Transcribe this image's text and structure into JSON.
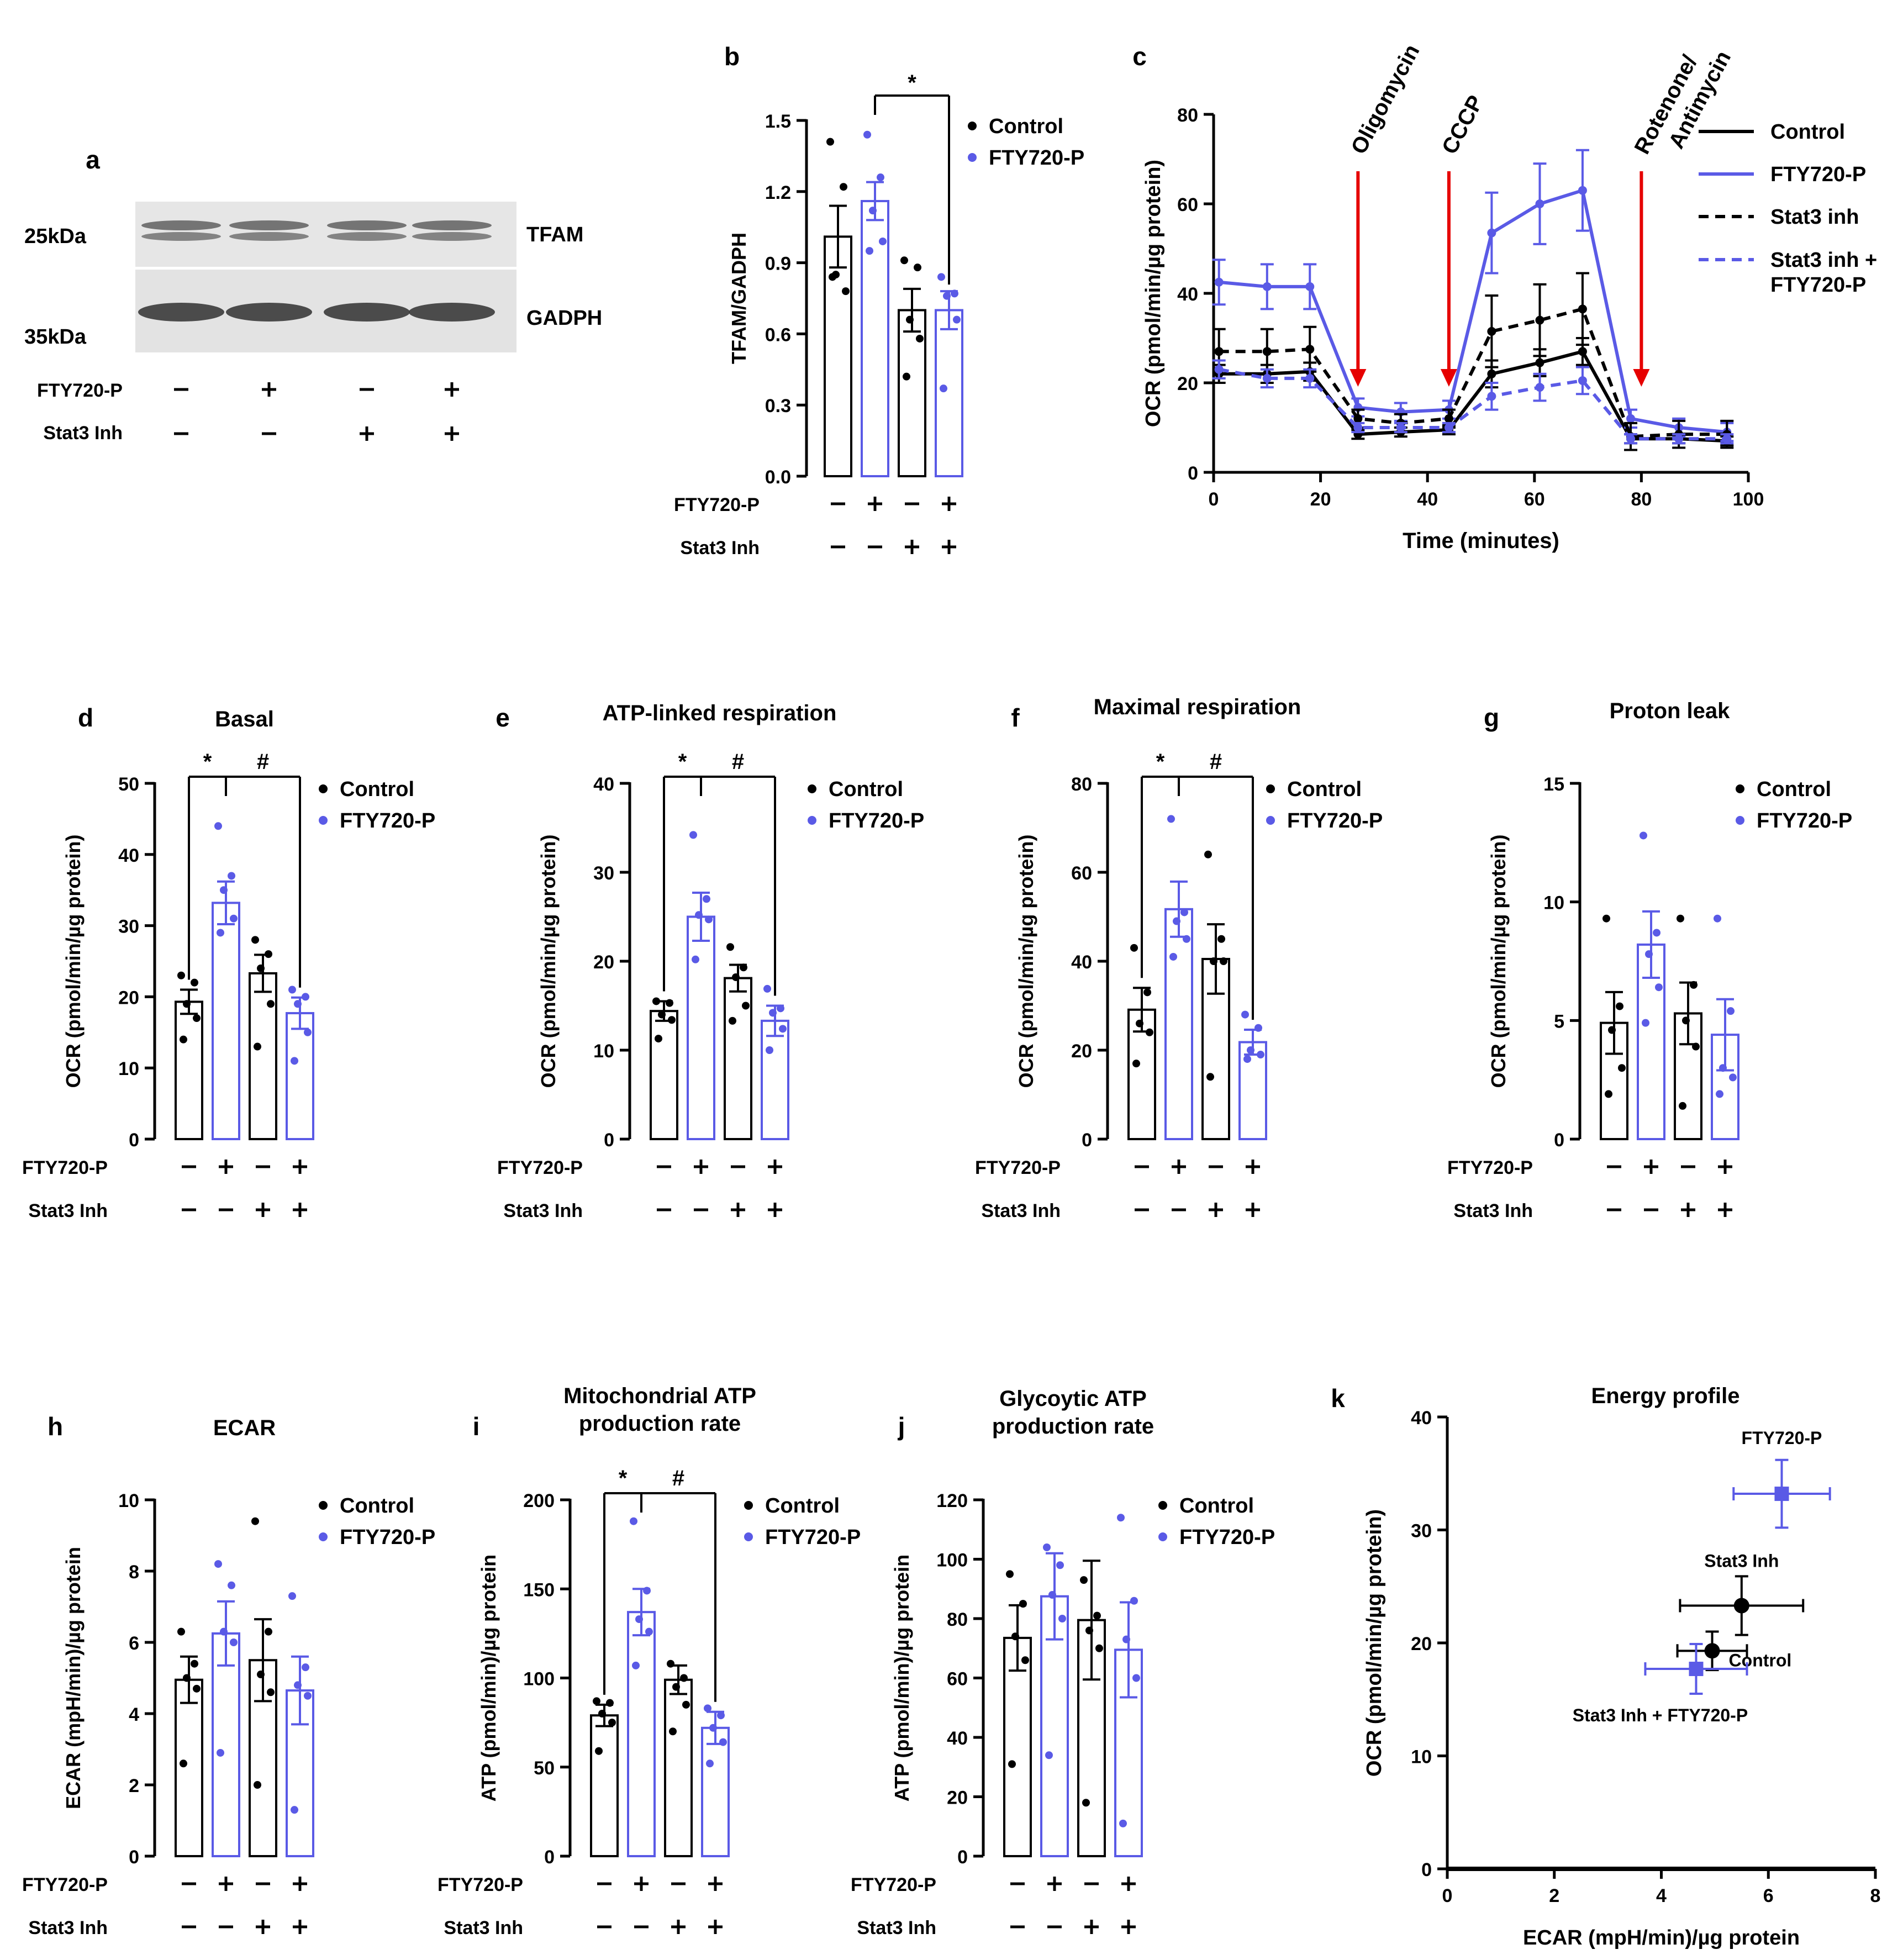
{
  "colors": {
    "control": "#000000",
    "fty": "#5a5ae6",
    "arrow": "#e60000",
    "profile_label": "#1a1adc"
  },
  "blot": {
    "letter": "a",
    "ladder": [
      "25kDa",
      "35kDa"
    ],
    "bands": [
      "TFAM",
      "GADPH"
    ],
    "fty_row": {
      "label": "FTY720-P",
      "signs": [
        "–",
        "+",
        "–",
        "+"
      ]
    },
    "stat_row": {
      "label": "Stat3 Inh",
      "signs": [
        "–",
        "–",
        "+",
        "+"
      ]
    }
  },
  "seahorse": {
    "letter": "c",
    "xlabel": "Time (minutes)",
    "ylabel": "OCR (pmol/min/µg protein)",
    "xlim": [
      0,
      100
    ],
    "ylim": [
      0,
      80
    ],
    "xticks": [
      "0",
      "20",
      "40",
      "60",
      "80",
      "100"
    ],
    "yticks": [
      "0",
      "20",
      "40",
      "60",
      "80"
    ],
    "injections": [
      {
        "x": 27,
        "lines": [
          "Oligomycin"
        ]
      },
      {
        "x": 44,
        "lines": [
          "CCCP"
        ]
      },
      {
        "x": 80,
        "lines": [
          "Rotenone/",
          "Antimycin"
        ]
      }
    ],
    "legend": [
      {
        "lines": [
          "Control"
        ]
      },
      {
        "lines": [
          "FTY720-P"
        ]
      },
      {
        "lines": [
          "Stat3 inh"
        ]
      },
      {
        "lines": [
          "Stat3 inh +",
          "FTY720-P"
        ]
      }
    ],
    "chart_data": {
      "type": "line",
      "x": [
        1,
        10,
        18,
        27,
        35,
        44,
        52,
        61,
        69,
        78,
        87,
        96
      ],
      "series": [
        {
          "name": "Control",
          "values": [
            22,
            22,
            22.5,
            8.5,
            9,
            9.5,
            22,
            24.5,
            27,
            7.5,
            7.5,
            7
          ],
          "err": [
            2,
            2,
            2,
            1,
            1,
            1,
            3,
            3,
            3,
            1,
            1,
            1
          ]
        },
        {
          "name": "FTY720-P",
          "values": [
            42.5,
            41.5,
            41.5,
            14.5,
            13.5,
            14,
            53.5,
            60,
            63,
            12,
            10,
            9
          ],
          "err": [
            5,
            5,
            5,
            2,
            2,
            2,
            9,
            9,
            9,
            2,
            2,
            2
          ]
        },
        {
          "name": "Stat3 inh",
          "values": [
            27,
            27,
            27.5,
            12,
            11,
            12,
            31.5,
            34,
            36.5,
            8,
            8.5,
            8.5
          ],
          "err": [
            5,
            5,
            5,
            2,
            2,
            2,
            8,
            8,
            8,
            3,
            3,
            3
          ]
        },
        {
          "name": "Stat3 inh + FTY720-P",
          "values": [
            23,
            21,
            21,
            10,
            10,
            10,
            17,
            19,
            20.5,
            7.5,
            7.5,
            7.5
          ],
          "err": [
            2,
            2,
            2,
            1,
            1,
            1,
            3,
            3,
            3,
            1,
            1,
            1
          ]
        }
      ]
    }
  },
  "bars": [
    {
      "letter": "b",
      "title": [],
      "ylabel": [
        "TFAM/GADPH"
      ],
      "ymax": 1.5,
      "yticks": [
        "0.0",
        "0.3",
        "0.6",
        "0.9",
        "1.2",
        "1.5"
      ],
      "means": [
        1.01,
        1.16,
        0.7,
        0.7
      ],
      "sems": [
        0.13,
        0.08,
        0.09,
        0.08
      ],
      "points": [
        [
          1.41,
          1.22,
          0.85,
          0.78,
          0.84
        ],
        [
          1.44,
          1.26,
          1.12,
          0.99,
          0.95
        ],
        [
          0.91,
          0.88,
          0.66,
          0.58,
          0.42
        ],
        [
          0.84,
          0.77,
          0.76,
          0.66,
          0.37
        ]
      ],
      "sig": [
        "",
        "*"
      ],
      "fty": [
        "–",
        "+",
        "–",
        "+"
      ],
      "stat": [
        "–",
        "–",
        "+",
        "+"
      ],
      "legend": [
        "Control",
        "FTY720-P"
      ]
    },
    {
      "letter": "d",
      "title": [
        "Basal"
      ],
      "ylabel": [
        "OCR (pmol/min/µg protein)"
      ],
      "ymax": 50,
      "yticks": [
        "0",
        "10",
        "20",
        "30",
        "40",
        "50"
      ],
      "means": [
        19.3,
        33.2,
        23.3,
        17.7
      ],
      "sems": [
        1.7,
        3.0,
        2.6,
        2.2
      ],
      "points": [
        [
          23,
          22,
          19,
          17,
          14
        ],
        [
          44,
          37,
          35,
          31,
          29
        ],
        [
          28,
          26,
          24,
          19,
          13
        ],
        [
          21,
          20,
          19,
          15,
          11
        ]
      ],
      "sig": [
        "*",
        "#"
      ],
      "fty": [
        "–",
        "+",
        "–",
        "+"
      ],
      "stat": [
        "–",
        "–",
        "+",
        "+"
      ],
      "legend": [
        "Control",
        "FTY720-P"
      ]
    },
    {
      "letter": "e",
      "title": [
        "ATP-linked respiration"
      ],
      "ylabel": [
        "OCR (pmol/min/µg protein)"
      ],
      "ymax": 40,
      "yticks": [
        "0",
        "10",
        "20",
        "30",
        "40"
      ],
      "means": [
        14.4,
        25.0,
        18.1,
        13.3
      ],
      "sems": [
        1.1,
        2.7,
        1.5,
        1.7
      ],
      "points": [
        [
          15.5,
          15.3,
          14.0,
          13.4,
          11.3
        ],
        [
          34.2,
          27.0,
          25.2,
          24.7,
          20.2
        ],
        [
          21.6,
          19.3,
          18.2,
          15.0,
          13.3
        ],
        [
          16.9,
          14.7,
          14.2,
          12.4,
          10.0
        ]
      ],
      "sig": [
        "*",
        "#"
      ],
      "fty": [
        "–",
        "+",
        "–",
        "+"
      ],
      "stat": [
        "–",
        "–",
        "+",
        "+"
      ],
      "legend": [
        "Control",
        "FTY720-P"
      ]
    },
    {
      "letter": "f",
      "title": [
        "Maximal respiration"
      ],
      "ylabel": [
        "OCR (pmol/min/µg protein)"
      ],
      "ymax": 80,
      "yticks": [
        "0",
        "20",
        "40",
        "60",
        "80"
      ],
      "means": [
        29.1,
        51.7,
        40.5,
        21.8
      ],
      "sems": [
        4.9,
        6.2,
        7.8,
        2.8
      ],
      "points": [
        [
          43,
          33,
          26,
          24,
          17
        ],
        [
          72,
          51,
          49,
          45,
          41
        ],
        [
          64,
          45,
          40,
          40,
          14
        ],
        [
          28,
          25,
          20,
          19,
          18
        ]
      ],
      "sig": [
        "*",
        "#"
      ],
      "fty": [
        "–",
        "+",
        "–",
        "+"
      ],
      "stat": [
        "–",
        "–",
        "+",
        "+"
      ],
      "legend": [
        "Control",
        "FTY720-P"
      ]
    },
    {
      "letter": "g",
      "title": [
        "Proton leak"
      ],
      "ylabel": [
        "OCR (pmol/min/µg protein)"
      ],
      "ymax": 15,
      "yticks": [
        "0",
        "5",
        "10",
        "15"
      ],
      "means": [
        4.9,
        8.2,
        5.3,
        4.4
      ],
      "sems": [
        1.3,
        1.4,
        1.3,
        1.5
      ],
      "points": [
        [
          9.3,
          5.6,
          4.6,
          3.0,
          1.9
        ],
        [
          12.8,
          8.7,
          7.8,
          6.4,
          4.9
        ],
        [
          9.3,
          6.5,
          5.0,
          3.9,
          1.4
        ],
        [
          9.3,
          5.4,
          3.0,
          2.6,
          1.9
        ]
      ],
      "sig": [
        "",
        ""
      ],
      "fty": [
        "–",
        "+",
        "–",
        "+"
      ],
      "stat": [
        "–",
        "–",
        "+",
        "+"
      ],
      "legend": [
        "Control",
        "FTY720-P"
      ]
    },
    {
      "letter": "h",
      "title": [
        "ECAR"
      ],
      "ylabel": [
        "ECAR (mpH/min)/µg protein"
      ],
      "ymax": 10,
      "yticks": [
        "0",
        "2",
        "4",
        "6",
        "8",
        "10"
      ],
      "means": [
        4.95,
        6.25,
        5.5,
        4.65
      ],
      "sems": [
        0.65,
        0.9,
        1.15,
        0.95
      ],
      "points": [
        [
          6.3,
          5.4,
          5.0,
          4.7,
          2.6
        ],
        [
          8.2,
          7.6,
          6.3,
          6.0,
          2.9
        ],
        [
          9.4,
          6.3,
          5.1,
          4.6,
          2.0
        ],
        [
          7.3,
          5.3,
          4.8,
          4.5,
          1.3
        ]
      ],
      "sig": [
        "",
        ""
      ],
      "fty": [
        "–",
        "+",
        "–",
        "+"
      ],
      "stat": [
        "–",
        "–",
        "+",
        "+"
      ],
      "legend": [
        "Control",
        "FTY720-P"
      ]
    },
    {
      "letter": "i",
      "title": [
        "Mitochondrial ATP",
        "production rate"
      ],
      "ylabel": [
        "ATP (pmol/min)/µg protein"
      ],
      "ymax": 200,
      "yticks": [
        "0",
        "50",
        "100",
        "150",
        "200"
      ],
      "means": [
        79,
        137,
        99,
        72
      ],
      "sems": [
        6,
        13,
        8,
        9
      ],
      "points": [
        [
          87,
          86,
          80,
          75,
          59
        ],
        [
          188,
          149,
          133,
          126,
          107
        ],
        [
          108,
          100,
          95,
          85,
          70
        ],
        [
          83,
          79,
          72,
          64,
          52
        ]
      ],
      "sig": [
        "*",
        "#"
      ],
      "fty": [
        "–",
        "+",
        "–",
        "+"
      ],
      "stat": [
        "–",
        "–",
        "+",
        "+"
      ],
      "legend": [
        "Control",
        "FTY720-P"
      ]
    },
    {
      "letter": "j",
      "title": [
        "Glycoytic ATP",
        "production rate"
      ],
      "ylabel": [
        "ATP (pmol/min)/µg protein"
      ],
      "ymax": 120,
      "yticks": [
        "0",
        "20",
        "40",
        "60",
        "80",
        "100",
        "120"
      ],
      "means": [
        73.5,
        87.5,
        79.5,
        69.5
      ],
      "sems": [
        11,
        14.5,
        20,
        16
      ],
      "points": [
        [
          95,
          85,
          74,
          66,
          31
        ],
        [
          104,
          98,
          88,
          80,
          34
        ],
        [
          93,
          81,
          76,
          70,
          18
        ],
        [
          114,
          86,
          73,
          60,
          11
        ]
      ],
      "sig": [
        "",
        ""
      ],
      "fty": [
        "–",
        "+",
        "–",
        "+"
      ],
      "stat": [
        "–",
        "–",
        "+",
        "+"
      ],
      "legend": [
        "Control",
        "FTY720-P"
      ]
    }
  ],
  "bar_row_labels": {
    "fty": "FTY720-P",
    "stat": "Stat3 Inh"
  },
  "energy": {
    "letter": "k",
    "title": "Energy profile",
    "xlabel": "ECAR (mpH/min)/µg protein",
    "ylabel": "OCR (pmol/min/µg protein)",
    "xlim": [
      0,
      8
    ],
    "ylim": [
      0,
      40
    ],
    "xticks": [
      "0",
      "2",
      "4",
      "6",
      "8"
    ],
    "yticks": [
      "0",
      "10",
      "20",
      "30",
      "40"
    ],
    "chart_data": {
      "type": "scatter",
      "points": [
        {
          "name": "Control",
          "label": "Control",
          "x": 4.95,
          "y": 19.3,
          "xerr": 0.65,
          "yerr": 1.7,
          "marker": "circle"
        },
        {
          "name": "FTY720-P",
          "label": "FTY720-P",
          "x": 6.25,
          "y": 33.2,
          "xerr": 0.9,
          "yerr": 3.0,
          "marker": "square"
        },
        {
          "name": "Stat3 Inh",
          "label": "Stat3 Inh",
          "x": 5.5,
          "y": 23.3,
          "xerr": 1.15,
          "yerr": 2.6,
          "marker": "circle"
        },
        {
          "name": "Stat3 Inh + FTY720-P",
          "label": "Stat3 Inh + FTY720-P",
          "x": 4.65,
          "y": 17.7,
          "xerr": 0.95,
          "yerr": 2.2,
          "marker": "square"
        }
      ]
    }
  }
}
